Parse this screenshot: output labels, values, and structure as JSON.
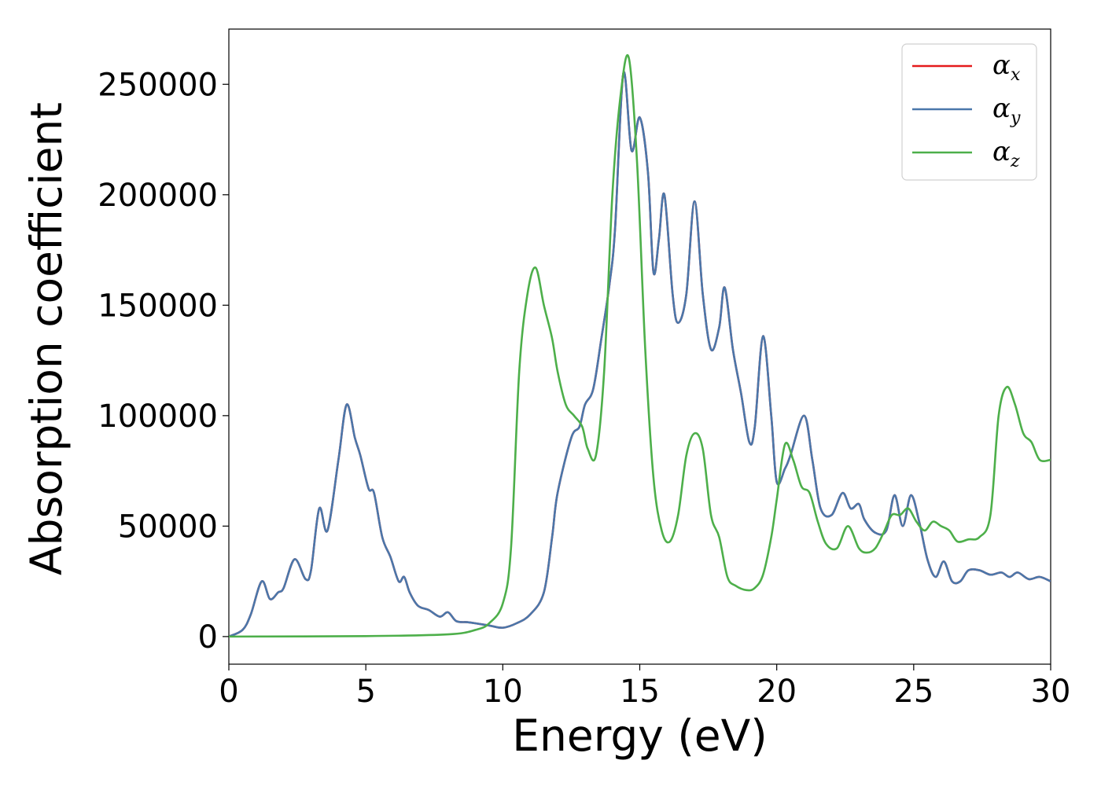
{
  "chart_data": {
    "type": "line",
    "title": "",
    "xlabel": "Energy (eV)",
    "ylabel": "Absorption coefficient",
    "xlim": [
      0,
      30
    ],
    "ylim": [
      -12500,
      275000
    ],
    "xticks": [
      0,
      5,
      10,
      15,
      20,
      25,
      30
    ],
    "yticks": [
      0,
      50000,
      100000,
      150000,
      200000,
      250000
    ],
    "grid": false,
    "legend_position": "top-right",
    "series": [
      {
        "name": "α",
        "subscript": "x",
        "color": "#e41a1c",
        "x": [
          0,
          0.5,
          0.8,
          1.2,
          1.5,
          1.8,
          2.0,
          2.4,
          2.8,
          3.0,
          3.3,
          3.6,
          4.0,
          4.3,
          4.6,
          4.8,
          5.1,
          5.3,
          5.6,
          5.9,
          6.2,
          6.4,
          6.6,
          6.9,
          7.3,
          7.7,
          8.0,
          8.3,
          8.7,
          9.0,
          9.5,
          10.0,
          10.5,
          11.0,
          11.5,
          11.8,
          12.0,
          12.5,
          12.8,
          13.0,
          13.3,
          13.6,
          13.9,
          14.1,
          14.4,
          14.7,
          15.0,
          15.3,
          15.5,
          15.7,
          15.9,
          16.2,
          16.4,
          16.7,
          17.0,
          17.3,
          17.6,
          17.9,
          18.1,
          18.4,
          18.7,
          19.0,
          19.2,
          19.5,
          19.8,
          20.0,
          20.3,
          20.5,
          21.0,
          21.3,
          21.6,
          22.0,
          22.4,
          22.7,
          23.0,
          23.2,
          23.6,
          24.0,
          24.3,
          24.6,
          24.9,
          25.2,
          25.5,
          25.8,
          26.1,
          26.4,
          26.7,
          27.0,
          27.4,
          27.8,
          28.2,
          28.5,
          28.8,
          29.2,
          29.6,
          30.0
        ],
        "y": [
          0,
          3000,
          10000,
          25000,
          17000,
          20000,
          22000,
          35000,
          26000,
          30000,
          58000,
          48000,
          80000,
          105000,
          90000,
          82000,
          67000,
          65000,
          45000,
          36000,
          25000,
          27000,
          20000,
          14000,
          12000,
          9000,
          11000,
          7000,
          6500,
          6000,
          5000,
          4000,
          6000,
          10000,
          20000,
          45000,
          65000,
          90000,
          95000,
          105000,
          112000,
          135000,
          160000,
          185000,
          255000,
          220000,
          235000,
          210000,
          165000,
          180000,
          200000,
          155000,
          142000,
          155000,
          197000,
          155000,
          130000,
          140000,
          158000,
          130000,
          110000,
          88000,
          95000,
          136000,
          100000,
          70000,
          76000,
          82000,
          100000,
          80000,
          58000,
          55000,
          65000,
          58000,
          60000,
          53000,
          47000,
          48000,
          64000,
          50000,
          64000,
          52000,
          35000,
          27000,
          34000,
          25000,
          25000,
          30000,
          30000,
          28000,
          29000,
          27000,
          29000,
          26000,
          27000,
          25000
        ]
      },
      {
        "name": "α",
        "subscript": "y",
        "color": "#4a77aa",
        "x": [
          0,
          0.5,
          0.8,
          1.2,
          1.5,
          1.8,
          2.0,
          2.4,
          2.8,
          3.0,
          3.3,
          3.6,
          4.0,
          4.3,
          4.6,
          4.8,
          5.1,
          5.3,
          5.6,
          5.9,
          6.2,
          6.4,
          6.6,
          6.9,
          7.3,
          7.7,
          8.0,
          8.3,
          8.7,
          9.0,
          9.5,
          10.0,
          10.5,
          11.0,
          11.5,
          11.8,
          12.0,
          12.5,
          12.8,
          13.0,
          13.3,
          13.6,
          13.9,
          14.1,
          14.4,
          14.7,
          15.0,
          15.3,
          15.5,
          15.7,
          15.9,
          16.2,
          16.4,
          16.7,
          17.0,
          17.3,
          17.6,
          17.9,
          18.1,
          18.4,
          18.7,
          19.0,
          19.2,
          19.5,
          19.8,
          20.0,
          20.3,
          20.5,
          21.0,
          21.3,
          21.6,
          22.0,
          22.4,
          22.7,
          23.0,
          23.2,
          23.6,
          24.0,
          24.3,
          24.6,
          24.9,
          25.2,
          25.5,
          25.8,
          26.1,
          26.4,
          26.7,
          27.0,
          27.4,
          27.8,
          28.2,
          28.5,
          28.8,
          29.2,
          29.6,
          30.0
        ],
        "y": [
          0,
          3000,
          10000,
          25000,
          17000,
          20000,
          22000,
          35000,
          26000,
          30000,
          58000,
          48000,
          80000,
          105000,
          90000,
          82000,
          67000,
          65000,
          45000,
          36000,
          25000,
          27000,
          20000,
          14000,
          12000,
          9000,
          11000,
          7000,
          6500,
          6000,
          5000,
          4000,
          6000,
          10000,
          20000,
          45000,
          65000,
          90000,
          95000,
          105000,
          112000,
          135000,
          160000,
          185000,
          255000,
          220000,
          235000,
          210000,
          165000,
          180000,
          200000,
          155000,
          142000,
          155000,
          197000,
          155000,
          130000,
          140000,
          158000,
          130000,
          110000,
          88000,
          95000,
          136000,
          100000,
          70000,
          76000,
          82000,
          100000,
          80000,
          58000,
          55000,
          65000,
          58000,
          60000,
          53000,
          47000,
          48000,
          64000,
          50000,
          64000,
          52000,
          35000,
          27000,
          34000,
          25000,
          25000,
          30000,
          30000,
          28000,
          29000,
          27000,
          29000,
          26000,
          27000,
          25000
        ]
      },
      {
        "name": "α",
        "subscript": "z",
        "color": "#4daf4a",
        "x": [
          0,
          5,
          8,
          9,
          9.5,
          10.0,
          10.3,
          10.6,
          10.9,
          11.2,
          11.5,
          11.8,
          12.0,
          12.3,
          12.6,
          12.9,
          13.1,
          13.4,
          13.7,
          14.0,
          14.3,
          14.6,
          14.9,
          15.2,
          15.5,
          15.8,
          16.1,
          16.4,
          16.7,
          17.0,
          17.3,
          17.6,
          17.9,
          18.2,
          18.5,
          18.9,
          19.2,
          19.5,
          19.8,
          20.0,
          20.3,
          20.6,
          20.9,
          21.2,
          21.5,
          21.8,
          22.2,
          22.6,
          23.0,
          23.3,
          23.6,
          23.9,
          24.2,
          24.5,
          24.8,
          25.1,
          25.4,
          25.7,
          26.0,
          26.3,
          26.6,
          27.0,
          27.4,
          27.8,
          28.1,
          28.4,
          28.7,
          29.0,
          29.3,
          29.6,
          30.0
        ],
        "y": [
          0,
          200,
          1000,
          3000,
          6000,
          15000,
          40000,
          120000,
          155000,
          167000,
          150000,
          135000,
          120000,
          105000,
          100000,
          95000,
          85000,
          82000,
          120000,
          200000,
          245000,
          262000,
          215000,
          130000,
          72000,
          48000,
          43000,
          55000,
          82000,
          92000,
          85000,
          55000,
          45000,
          27000,
          23000,
          21000,
          22000,
          28000,
          45000,
          62000,
          87000,
          80000,
          68000,
          65000,
          52000,
          42000,
          40000,
          50000,
          40000,
          38000,
          40000,
          47000,
          55000,
          55000,
          58000,
          52000,
          48000,
          52000,
          50000,
          48000,
          43000,
          44000,
          45000,
          55000,
          100000,
          113000,
          105000,
          92000,
          88000,
          80000,
          80000
        ]
      }
    ]
  }
}
